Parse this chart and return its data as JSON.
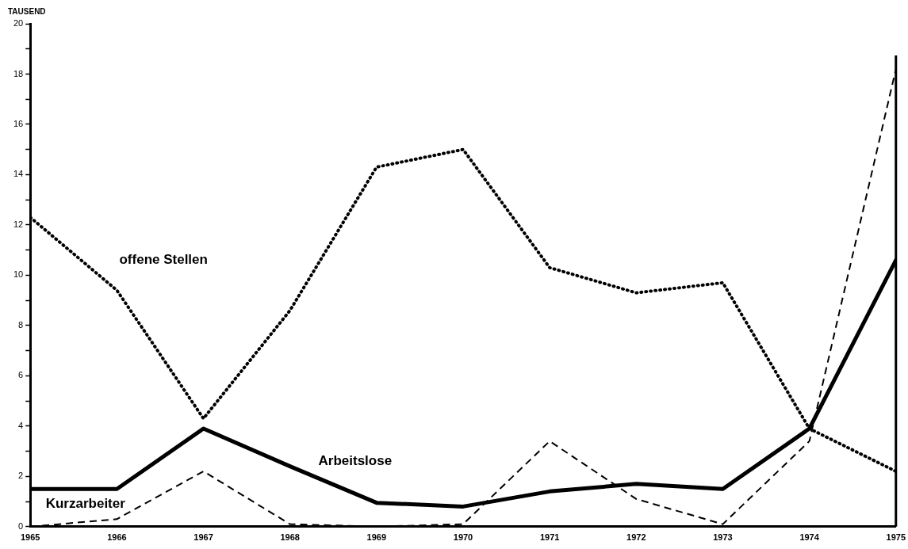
{
  "chart_data": {
    "type": "line",
    "ylabel": "TAUSEND",
    "x": [
      1965,
      1966,
      1967,
      1968,
      1969,
      1970,
      1971,
      1972,
      1973,
      1974,
      1975
    ],
    "xlim": [
      1965,
      1975
    ],
    "xticks": [
      1965,
      1966,
      1967,
      1968,
      1969,
      1970,
      1971,
      1972,
      1973,
      1974,
      1975
    ],
    "ylim": [
      0,
      20
    ],
    "yticks": [
      0,
      {
        "value": 1,
        "label": null
      },
      2,
      {
        "value": 3,
        "label": null
      },
      4,
      {
        "value": 5,
        "label": null
      },
      6,
      {
        "value": 7,
        "label": null
      },
      8,
      {
        "value": 9,
        "label": null
      },
      10,
      {
        "value": 11,
        "label": null
      },
      12,
      {
        "value": 13,
        "label": null
      },
      14,
      {
        "value": 15,
        "label": null
      },
      16,
      {
        "value": 17,
        "label": null
      },
      18,
      {
        "value": 19,
        "label": null
      },
      20
    ],
    "grid": false,
    "legend": false,
    "marker": "none",
    "series": [
      {
        "name": "offene Stellen",
        "color": "#000000",
        "line_style": "dotted",
        "values": [
          12.3,
          9.4,
          4.3,
          8.6,
          14.3,
          15.0,
          10.3,
          9.3,
          9.7,
          3.9,
          2.2
        ]
      },
      {
        "name": "Arbeitslose",
        "color": "#000000",
        "line_style": "solid",
        "values": [
          1.5,
          1.5,
          3.9,
          2.4,
          0.95,
          0.8,
          1.4,
          1.7,
          1.5,
          3.9,
          10.6
        ]
      },
      {
        "name": "Kurzarbeiter",
        "color": "#000000",
        "line_style": "dashed",
        "values": [
          0,
          0.3,
          2.2,
          0.1,
          0,
          0.1,
          3.4,
          1.1,
          0.1,
          3.4,
          18.2
        ]
      }
    ]
  }
}
